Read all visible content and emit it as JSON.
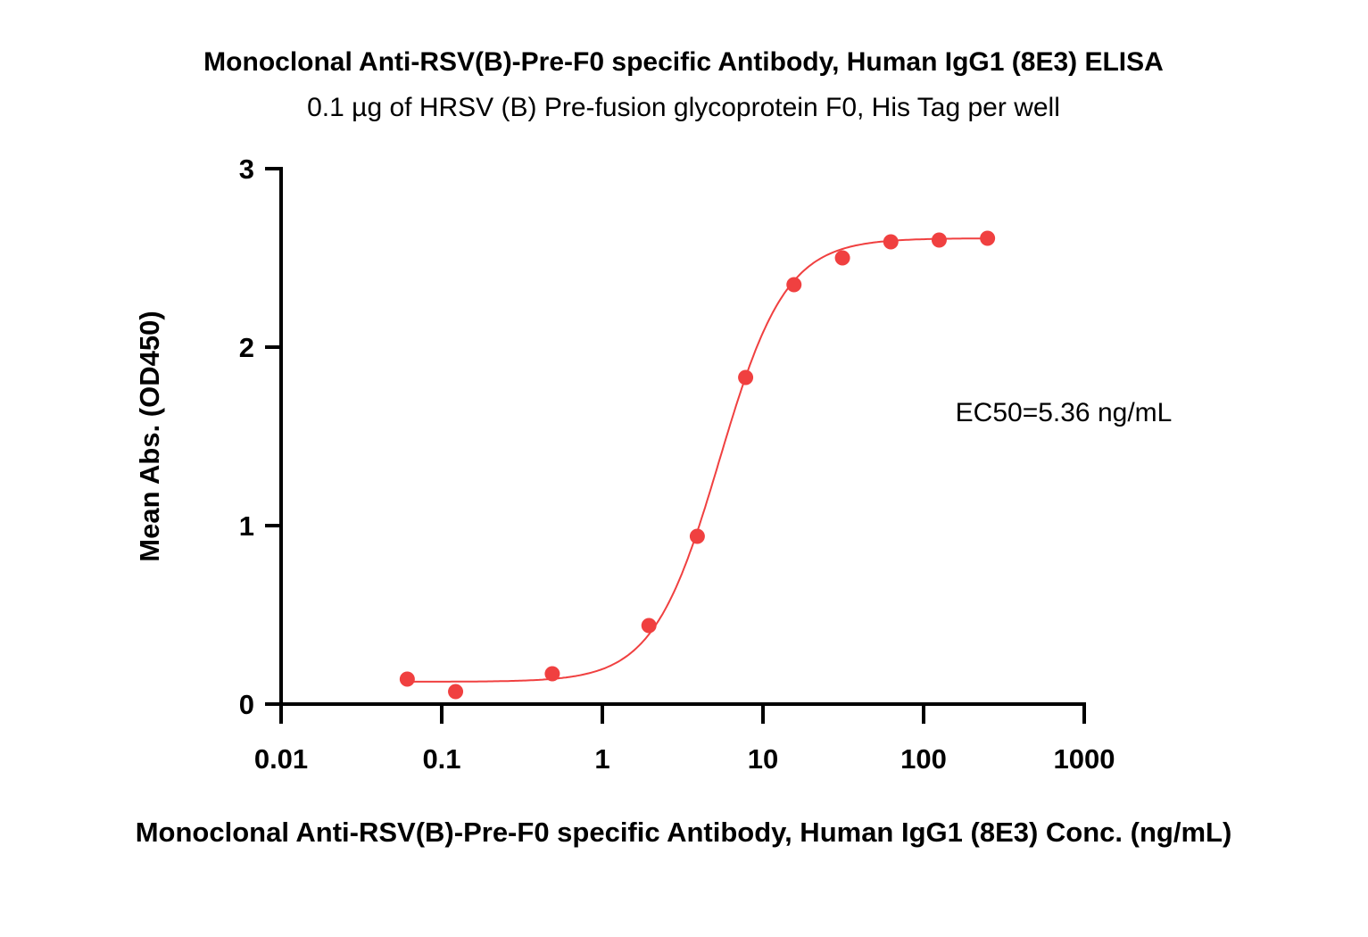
{
  "chart_data": {
    "type": "scatter",
    "title": "Monoclonal Anti-RSV(B)-Pre-F0 specific Antibody, Human IgG1 (8E3) ELISA",
    "subtitle": "0.1 µg of HRSV (B) Pre-fusion glycoprotein F0, His Tag per well",
    "xlabel": "Monoclonal Anti-RSV(B)-Pre-F0 specific Antibody, Human IgG1 (8E3) Conc. (ng/mL)",
    "ylabel": "Mean Abs. (OD450)",
    "xscale": "log",
    "xlim": [
      0.01,
      1000
    ],
    "ylim": [
      0,
      3
    ],
    "xticks": [
      "0.01",
      "0.1",
      "1",
      "10",
      "100",
      "1000"
    ],
    "xtick_values": [
      0.01,
      0.1,
      1,
      10,
      100,
      1000
    ],
    "yticks": [
      "0",
      "1",
      "2",
      "3"
    ],
    "ytick_values": [
      0,
      1,
      2,
      3
    ],
    "annotation": "EC50=5.36 ng/mL",
    "series": [
      {
        "name": "8E3",
        "color": "#f04040",
        "x": [
          0.061,
          0.122,
          0.488,
          1.95,
          3.9,
          7.8,
          15.6,
          31.25,
          62.5,
          125,
          250
        ],
        "y": [
          0.14,
          0.07,
          0.17,
          0.44,
          0.94,
          1.83,
          2.35,
          2.5,
          2.59,
          2.6,
          2.61
        ],
        "fit": {
          "model": "4PL",
          "bottom": 0.125,
          "top": 2.61,
          "ec50": 5.36,
          "hill": 2.1
        }
      }
    ],
    "grid": false
  }
}
